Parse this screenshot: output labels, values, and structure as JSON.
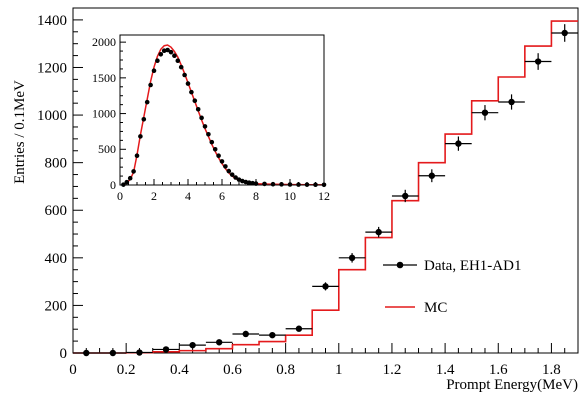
{
  "chart_data": [
    {
      "type": "line",
      "xlabel": "Prompt Energy(MeV)",
      "ylabel": "Entries / 0.1MeV",
      "xlim": [
        0,
        1.9
      ],
      "ylim": [
        0,
        1450
      ],
      "xticks": [
        0,
        0.2,
        0.4,
        0.6,
        0.8,
        1,
        1.2,
        1.4,
        1.6,
        1.8
      ],
      "xtick_labels": [
        "0",
        "0.2",
        "0.4",
        "0.6",
        "0.8",
        "1",
        "1.2",
        "1.4",
        "1.6",
        "1.8"
      ],
      "yticks": [
        0,
        200,
        400,
        600,
        800,
        1000,
        1200,
        1400
      ],
      "ytick_labels": [
        "0",
        "200",
        "400",
        "600",
        "800",
        "1000",
        "1200",
        "1400"
      ],
      "legend_position": "lower-right",
      "series": [
        {
          "name": "Data, EH1-AD1",
          "style": "points-with-errors",
          "color": "#000000",
          "x": [
            0.05,
            0.15,
            0.25,
            0.35,
            0.45,
            0.55,
            0.65,
            0.75,
            0.85,
            0.95,
            1.05,
            1.15,
            1.25,
            1.35,
            1.45,
            1.55,
            1.65,
            1.75,
            1.85
          ],
          "y": [
            0,
            0,
            2,
            15,
            33,
            45,
            80,
            75,
            102,
            280,
            400,
            508,
            660,
            745,
            880,
            1010,
            1055,
            1225,
            1345
          ],
          "yerr": [
            2,
            2,
            3,
            5,
            12,
            12,
            13,
            12,
            12,
            17,
            20,
            22,
            26,
            27,
            30,
            32,
            32,
            35,
            37
          ]
        },
        {
          "name": "MC",
          "style": "step-histogram",
          "color": "#e41a1c",
          "bin_edges": [
            0,
            0.1,
            0.2,
            0.3,
            0.4,
            0.5,
            0.6,
            0.7,
            0.8,
            0.9,
            1.0,
            1.1,
            1.2,
            1.3,
            1.4,
            1.5,
            1.6,
            1.7,
            1.8,
            1.9
          ],
          "values": [
            0,
            0,
            1,
            5,
            10,
            18,
            35,
            48,
            75,
            180,
            350,
            485,
            640,
            800,
            920,
            1060,
            1160,
            1290,
            1395
          ]
        }
      ]
    },
    {
      "type": "line",
      "inset": true,
      "xlim": [
        0,
        12
      ],
      "ylim": [
        0,
        2100
      ],
      "xticks": [
        0,
        2,
        4,
        6,
        8,
        10,
        12
      ],
      "xtick_labels": [
        "0",
        "2",
        "4",
        "6",
        "8",
        "10",
        "12"
      ],
      "yticks": [
        0,
        500,
        1000,
        1500,
        2000
      ],
      "ytick_labels": [
        "0",
        "500",
        "1000",
        "1500",
        "2000"
      ],
      "series": [
        {
          "name": "MC",
          "style": "step-histogram",
          "color": "#e41a1c",
          "x": [
            0.2,
            0.4,
            0.6,
            0.8,
            1.0,
            1.2,
            1.4,
            1.6,
            1.8,
            2.0,
            2.2,
            2.4,
            2.6,
            2.8,
            3.0,
            3.2,
            3.4,
            3.6,
            3.8,
            4.0,
            4.2,
            4.4,
            4.6,
            4.8,
            5.0,
            5.2,
            5.4,
            5.6,
            5.8,
            6.0,
            6.2,
            6.4,
            6.6,
            6.8,
            7.0,
            7.2,
            7.4,
            7.6,
            7.8,
            8.0,
            8.5,
            9.0,
            9.5,
            10.0,
            10.5,
            11.0,
            11.5,
            12.0
          ],
          "y": [
            5,
            30,
            80,
            180,
            420,
            700,
            950,
            1200,
            1450,
            1650,
            1800,
            1900,
            1950,
            1960,
            1930,
            1870,
            1790,
            1680,
            1560,
            1430,
            1300,
            1170,
            1040,
            910,
            790,
            680,
            570,
            470,
            380,
            300,
            230,
            170,
            125,
            90,
            65,
            48,
            36,
            28,
            22,
            18,
            14,
            10,
            8,
            6,
            5,
            4,
            3,
            2
          ]
        },
        {
          "name": "Data, EH1-AD1",
          "style": "points",
          "color": "#000000",
          "x": [
            0.2,
            0.4,
            0.6,
            0.8,
            1.0,
            1.2,
            1.4,
            1.6,
            1.8,
            2.0,
            2.2,
            2.4,
            2.6,
            2.8,
            3.0,
            3.2,
            3.4,
            3.6,
            3.8,
            4.0,
            4.2,
            4.4,
            4.6,
            4.8,
            5.0,
            5.2,
            5.4,
            5.6,
            5.8,
            6.0,
            6.2,
            6.4,
            6.6,
            6.8,
            7.0,
            7.2,
            7.4,
            7.6,
            7.8,
            8.0,
            8.5,
            9.0,
            9.5,
            10.0,
            10.5,
            11.0,
            11.5,
            12.0
          ],
          "y": [
            5,
            40,
            95,
            190,
            410,
            680,
            920,
            1160,
            1400,
            1600,
            1740,
            1830,
            1880,
            1890,
            1860,
            1810,
            1740,
            1650,
            1540,
            1420,
            1300,
            1180,
            1060,
            940,
            820,
            710,
            600,
            500,
            410,
            330,
            260,
            195,
            145,
            105,
            75,
            55,
            42,
            32,
            25,
            20,
            15,
            11,
            9,
            7,
            6,
            5,
            4,
            3
          ]
        }
      ]
    }
  ],
  "legend": {
    "data_label": "Data, EH1-AD1",
    "mc_label": "MC"
  }
}
